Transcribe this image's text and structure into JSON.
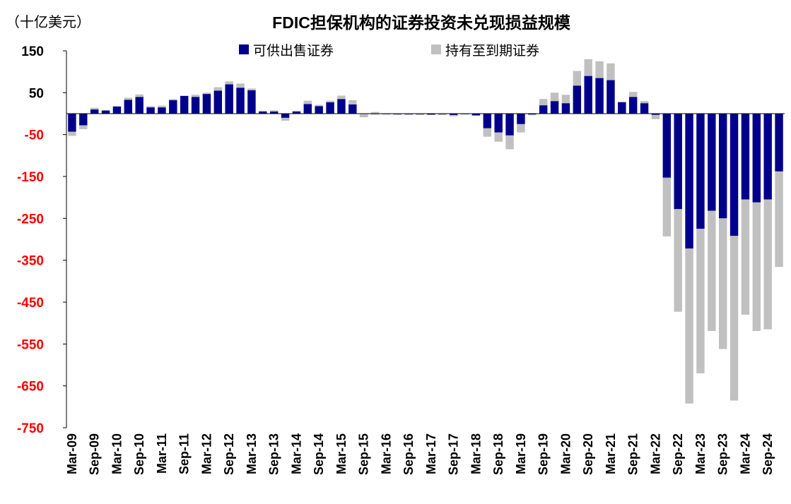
{
  "chart_data": {
    "type": "bar",
    "stacked": true,
    "title": "FDIC担保机构的证券投资未兑现损益规模",
    "ylabel": "（十亿美元）",
    "ylim": [
      -750,
      150
    ],
    "ytick_values": [
      150,
      50,
      -50,
      -150,
      -250,
      -350,
      -450,
      -550,
      -650,
      -750
    ],
    "ytick_labels": [
      "150",
      "50",
      "-50",
      "-150",
      "-250",
      "-350",
      "-450",
      "-550",
      "-650",
      "-750"
    ],
    "colors": {
      "afs": "#00008b",
      "htm": "#c0c0c0",
      "positive_tick": "#000000",
      "negative_tick": "#ff0000"
    },
    "tick_labels": [
      "Mar-09",
      "Sep-09",
      "Mar-10",
      "Sep-10",
      "Mar-11",
      "Sep-11",
      "Mar-12",
      "Sep-12",
      "Mar-13",
      "Sep-13",
      "Mar-14",
      "Sep-14",
      "Mar-15",
      "Sep-15",
      "Mar-16",
      "Sep-16",
      "Mar-17",
      "Sep-17",
      "Mar-18",
      "Sep-18",
      "Mar-19",
      "Sep-19",
      "Mar-20",
      "Sep-20",
      "Mar-21",
      "Sep-21",
      "Mar-22",
      "Sep-22",
      "Mar-23",
      "Sep-23",
      "Mar-24",
      "Sep-24"
    ],
    "series": [
      {
        "name": "可供出售证券",
        "values": [
          -43,
          -28,
          10,
          8,
          17,
          33,
          40,
          15,
          15,
          32,
          43,
          40,
          47,
          55,
          70,
          62,
          56,
          5,
          5,
          -10,
          5,
          23,
          18,
          27,
          35,
          22,
          -8,
          -2,
          -2,
          -3,
          -3,
          -3,
          -3,
          -3,
          -6,
          -2,
          -5,
          -35,
          -45,
          -52,
          -25,
          -2,
          20,
          30,
          25,
          67,
          90,
          85,
          80,
          28,
          40,
          25,
          -3,
          -153,
          -228,
          -322,
          -275,
          -232,
          -250,
          -292,
          -205,
          -212,
          -205,
          -138
        ]
      },
      {
        "name": "持有至到期证券",
        "values": [
          -10,
          -9,
          4,
          0,
          1,
          5,
          6,
          3,
          4,
          3,
          0,
          5,
          3,
          8,
          7,
          10,
          4,
          2,
          3,
          -7,
          2,
          8,
          3,
          4,
          8,
          10,
          8,
          6,
          3,
          2,
          2,
          2,
          1,
          2,
          3,
          3,
          1,
          -20,
          -22,
          -33,
          -20,
          -2,
          15,
          20,
          20,
          35,
          40,
          40,
          40,
          0,
          12,
          5,
          -10,
          -140,
          -245,
          -370,
          -345,
          -287,
          -312,
          -393,
          -275,
          -307,
          -310,
          -228
        ]
      }
    ]
  }
}
